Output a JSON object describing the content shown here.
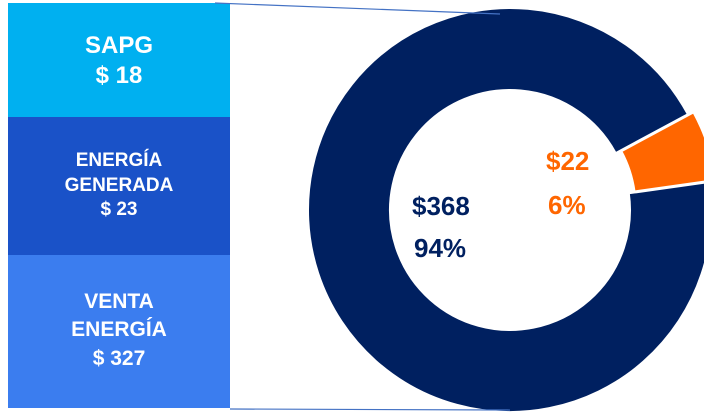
{
  "chart_data": {
    "type": "pie",
    "values": [
      368,
      22
    ],
    "value_labels": [
      "$368",
      "$22"
    ],
    "percents": [
      94,
      6
    ],
    "percent_labels": [
      "94%",
      "6%"
    ],
    "colors": [
      "#002060",
      "#ff6600"
    ]
  },
  "breakdown": [
    {
      "name": "SAPG",
      "value": "$ 18",
      "color": "#00b0f0"
    },
    {
      "name": "ENERGÍA GENERADA",
      "value": "$ 23",
      "color": "#1a52c8"
    },
    {
      "name": "VENTA ENERGÍA",
      "value": "$ 327",
      "color": "#3b7def"
    }
  ]
}
